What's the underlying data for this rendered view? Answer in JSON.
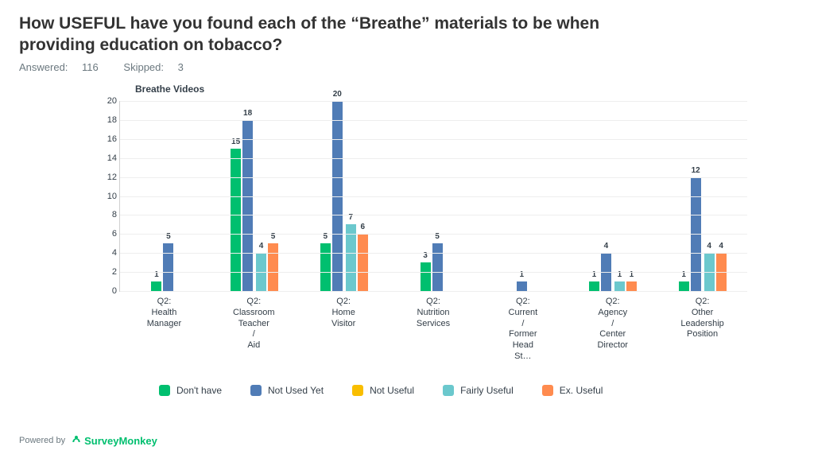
{
  "title": "How USEFUL have you found each of the “Breathe” materials to be when providing education on tobacco?",
  "meta": {
    "answered_label": "Answered:",
    "answered": "116",
    "skipped_label": "Skipped:",
    "skipped": "3"
  },
  "chart": {
    "title": "Breathe Videos",
    "type": "grouped_bar",
    "ylim": [
      0,
      20
    ],
    "ytick_step": 2,
    "yticks": [
      0,
      2,
      4,
      6,
      8,
      10,
      12,
      14,
      16,
      18,
      20
    ],
    "background_color": "#ffffff",
    "grid_color": "#eeeeee",
    "axis_color": "#d0d0d0",
    "label_fontsize": 11,
    "series": [
      {
        "key": "dont_have",
        "label": "Don't have",
        "color": "#00bf6f"
      },
      {
        "key": "not_used_yet",
        "label": "Not Used Yet",
        "color": "#507cb6"
      },
      {
        "key": "not_useful",
        "label": "Not Useful",
        "color": "#f9be00"
      },
      {
        "key": "fairly_useful",
        "label": "Fairly Useful",
        "color": "#6bc8cd"
      },
      {
        "key": "ex_useful",
        "label": "Ex. Useful",
        "color": "#ff8b4f"
      }
    ],
    "categories": [
      {
        "label": "Q2: Health Manager",
        "values": {
          "dont_have": 1,
          "not_used_yet": 5,
          "not_useful": 0,
          "fairly_useful": 0,
          "ex_useful": 0
        }
      },
      {
        "label": "Q2: Classroom Teacher / Aid",
        "values": {
          "dont_have": 15,
          "not_used_yet": 18,
          "not_useful": 0,
          "fairly_useful": 4,
          "ex_useful": 5
        }
      },
      {
        "label": "Q2: Home Visitor",
        "values": {
          "dont_have": 5,
          "not_used_yet": 20,
          "not_useful": 0,
          "fairly_useful": 7,
          "ex_useful": 6
        }
      },
      {
        "label": "Q2: Nutrition Services",
        "values": {
          "dont_have": 3,
          "not_used_yet": 5,
          "not_useful": 0,
          "fairly_useful": 0,
          "ex_useful": 0
        }
      },
      {
        "label": "Q2: Current / Former Head St…",
        "values": {
          "dont_have": 0,
          "not_used_yet": 1,
          "not_useful": 0,
          "fairly_useful": 0,
          "ex_useful": 0
        }
      },
      {
        "label": "Q2: Agency / Center Director",
        "values": {
          "dont_have": 1,
          "not_used_yet": 4,
          "not_useful": 0,
          "fairly_useful": 1,
          "ex_useful": 1
        }
      },
      {
        "label": "Q2: Other Leadership Position",
        "values": {
          "dont_have": 1,
          "not_used_yet": 12,
          "not_useful": 0,
          "fairly_useful": 4,
          "ex_useful": 4
        }
      }
    ]
  },
  "footer": {
    "powered_by": "Powered by",
    "brand": "SurveyMonkey"
  }
}
